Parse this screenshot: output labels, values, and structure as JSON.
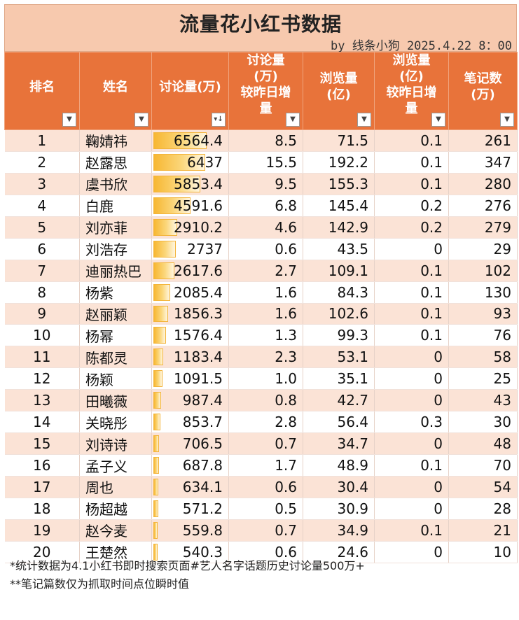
{
  "title": "流量花小红书数据",
  "byline": "by 线条小狗 2025.4.22 8：00",
  "headers": {
    "rank": "排名",
    "name": "姓名",
    "discussion": "讨论量(万)",
    "discussion_delta_lines": [
      "讨论量",
      "(万)",
      "较昨日增",
      "量"
    ],
    "views_lines": [
      "浏览量",
      "(亿)"
    ],
    "views_delta_lines": [
      "浏览量",
      "(亿)",
      "较昨日增",
      "量"
    ],
    "notes_lines": [
      "笔记数",
      "(万)"
    ]
  },
  "discussion_max": 6564.4,
  "rows": [
    {
      "rank": "1",
      "name": "鞠婧祎",
      "discussion": "6564.4",
      "discussion_value": 6564.4,
      "disc_delta": "8.5",
      "views": "71.5",
      "views_delta": "0.1",
      "notes": "261"
    },
    {
      "rank": "2",
      "name": "赵露思",
      "discussion": "6437",
      "discussion_value": 6437,
      "disc_delta": "15.5",
      "views": "192.2",
      "views_delta": "0.1",
      "notes": "347"
    },
    {
      "rank": "3",
      "name": "虞书欣",
      "discussion": "5853.4",
      "discussion_value": 5853.4,
      "disc_delta": "9.5",
      "views": "155.3",
      "views_delta": "0.1",
      "notes": "280"
    },
    {
      "rank": "4",
      "name": "白鹿",
      "discussion": "4591.6",
      "discussion_value": 4591.6,
      "disc_delta": "6.8",
      "views": "145.4",
      "views_delta": "0.2",
      "notes": "276"
    },
    {
      "rank": "5",
      "name": "刘亦菲",
      "discussion": "2910.2",
      "discussion_value": 2910.2,
      "disc_delta": "4.6",
      "views": "142.9",
      "views_delta": "0.2",
      "notes": "279"
    },
    {
      "rank": "6",
      "name": "刘浩存",
      "discussion": "2737",
      "discussion_value": 2737,
      "disc_delta": "0.6",
      "views": "43.5",
      "views_delta": "0",
      "notes": "29"
    },
    {
      "rank": "7",
      "name": "迪丽热巴",
      "discussion": "2617.6",
      "discussion_value": 2617.6,
      "disc_delta": "2.7",
      "views": "109.1",
      "views_delta": "0.1",
      "notes": "102"
    },
    {
      "rank": "8",
      "name": "杨紫",
      "discussion": "2085.4",
      "discussion_value": 2085.4,
      "disc_delta": "1.6",
      "views": "84.3",
      "views_delta": "0.1",
      "notes": "130"
    },
    {
      "rank": "9",
      "name": "赵丽颖",
      "discussion": "1856.3",
      "discussion_value": 1856.3,
      "disc_delta": "1.6",
      "views": "102.6",
      "views_delta": "0.1",
      "notes": "93"
    },
    {
      "rank": "10",
      "name": "杨幂",
      "discussion": "1576.4",
      "discussion_value": 1576.4,
      "disc_delta": "1.3",
      "views": "99.3",
      "views_delta": "0.1",
      "notes": "76"
    },
    {
      "rank": "11",
      "name": "陈都灵",
      "discussion": "1183.4",
      "discussion_value": 1183.4,
      "disc_delta": "2.3",
      "views": "53.1",
      "views_delta": "0",
      "notes": "58"
    },
    {
      "rank": "12",
      "name": "杨颖",
      "discussion": "1091.5",
      "discussion_value": 1091.5,
      "disc_delta": "1.0",
      "views": "35.1",
      "views_delta": "0",
      "notes": "25"
    },
    {
      "rank": "13",
      "name": "田曦薇",
      "discussion": "987.4",
      "discussion_value": 987.4,
      "disc_delta": "0.8",
      "views": "42.7",
      "views_delta": "0",
      "notes": "43"
    },
    {
      "rank": "14",
      "name": "关晓彤",
      "discussion": "853.7",
      "discussion_value": 853.7,
      "disc_delta": "2.8",
      "views": "56.4",
      "views_delta": "0.3",
      "notes": "30"
    },
    {
      "rank": "15",
      "name": "刘诗诗",
      "discussion": "706.5",
      "discussion_value": 706.5,
      "disc_delta": "0.7",
      "views": "34.7",
      "views_delta": "0",
      "notes": "48"
    },
    {
      "rank": "16",
      "name": "孟子义",
      "discussion": "687.8",
      "discussion_value": 687.8,
      "disc_delta": "1.7",
      "views": "48.9",
      "views_delta": "0.1",
      "notes": "70"
    },
    {
      "rank": "17",
      "name": "周也",
      "discussion": "634.1",
      "discussion_value": 634.1,
      "disc_delta": "0.6",
      "views": "30.4",
      "views_delta": "0",
      "notes": "54"
    },
    {
      "rank": "18",
      "name": "杨超越",
      "discussion": "571.2",
      "discussion_value": 571.2,
      "disc_delta": "0.5",
      "views": "30.9",
      "views_delta": "0",
      "notes": "28"
    },
    {
      "rank": "19",
      "name": "赵今麦",
      "discussion": "559.8",
      "discussion_value": 559.8,
      "disc_delta": "0.7",
      "views": "34.9",
      "views_delta": "0.1",
      "notes": "21"
    },
    {
      "rank": "20",
      "name": "王楚然",
      "discussion": "540.3",
      "discussion_value": 540.3,
      "disc_delta": "0.6",
      "views": "24.6",
      "views_delta": "0",
      "notes": "10"
    }
  ],
  "footnotes": [
    "*统计数据为4.1小红书即时搜索页面#艺人名字话题历史讨论量500万+",
    "**笔记篇数仅为抓取时间点位瞬时值"
  ],
  "icons": {
    "filter": "dropdown-arrow-icon",
    "sort_desc": "sort-descending-icon"
  },
  "colors": {
    "header_bg": "#e8733a",
    "title_bg": "#f7c9ae",
    "row_odd": "#fbe3d6",
    "row_even": "#ffffff",
    "databar": "#f7b732"
  }
}
